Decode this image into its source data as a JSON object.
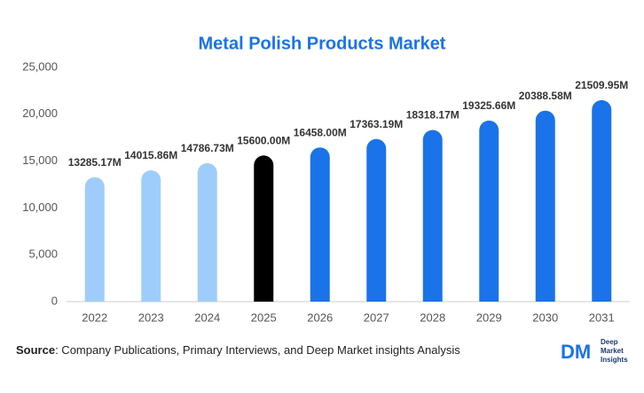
{
  "chart_data": {
    "type": "bar",
    "title": "Metal Polish Products Market",
    "categories": [
      "2022",
      "2023",
      "2024",
      "2025",
      "2026",
      "2027",
      "2028",
      "2029",
      "2030",
      "2031"
    ],
    "values": [
      13285.17,
      14015.86,
      14786.73,
      15600.0,
      16458.0,
      17363.19,
      18318.17,
      19325.66,
      20388.58,
      21509.95
    ],
    "value_labels": [
      "13285.17M",
      "14015.86M",
      "14786.73M",
      "15600.00M",
      "16458.00M",
      "17363.19M",
      "18318.17M",
      "19325.66M",
      "20388.58M",
      "21509.95M"
    ],
    "colors": [
      "#9fcdfb",
      "#9fcdfb",
      "#9fcdfb",
      "#000000",
      "#1a73e8",
      "#1a73e8",
      "#1a73e8",
      "#1a73e8",
      "#1a73e8",
      "#1a73e8"
    ],
    "ylim": [
      0,
      25000
    ],
    "yticks": [
      0,
      {
        "value": 5000,
        "label": "5,000"
      },
      {
        "value": 10000,
        "label": "10,000"
      },
      {
        "value": 15000,
        "label": "15,000"
      },
      {
        "value": 20000,
        "label": "20,000"
      },
      {
        "value": 25000,
        "label": "25,000"
      }
    ],
    "grid": false
  },
  "footer": {
    "source_label": "Source",
    "source_text": ": Company Publications, Primary Interviews, and Deep Market insights Analysis",
    "logo_mark": "DM",
    "logo_lines": [
      "Deep",
      "Market",
      "Insights"
    ]
  }
}
